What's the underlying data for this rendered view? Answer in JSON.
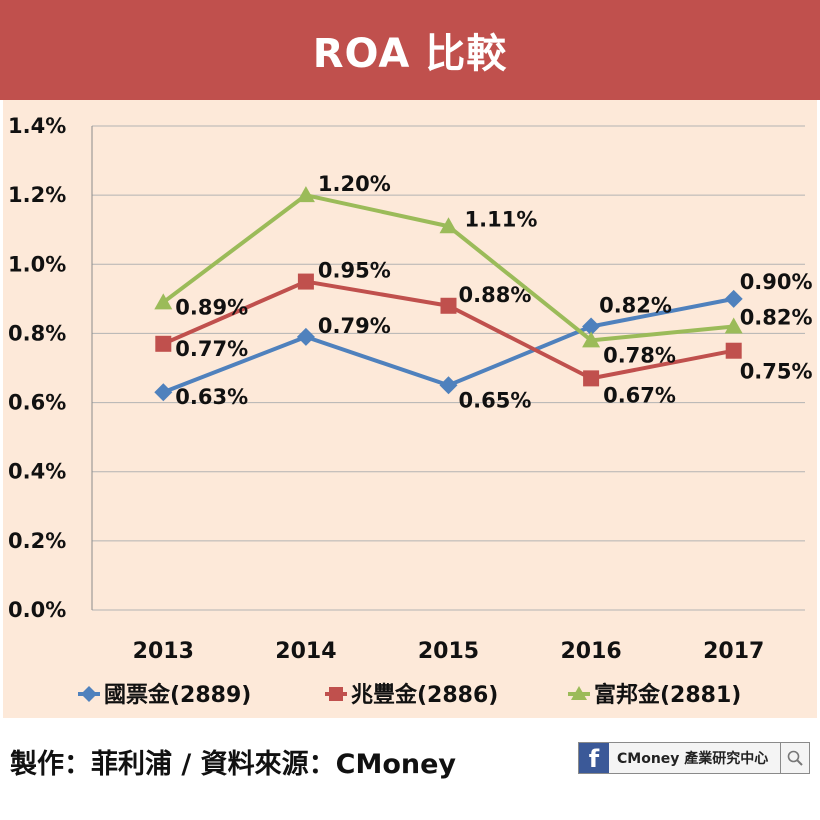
{
  "header": {
    "title": "ROA 比較"
  },
  "chart_data": {
    "type": "line",
    "title": "",
    "xlabel": "",
    "ylabel": "",
    "categories": [
      "2013",
      "2014",
      "2015",
      "2016",
      "2017"
    ],
    "ylim": [
      0.0,
      1.4
    ],
    "yticks": [
      "0.0%",
      "0.2%",
      "0.4%",
      "0.6%",
      "0.8%",
      "1.0%",
      "1.2%",
      "1.4%"
    ],
    "grid": true,
    "legend_position": "bottom",
    "series": [
      {
        "name": "國票金(2889)",
        "color": "#4f81bd",
        "marker": "diamond",
        "values": [
          0.63,
          0.79,
          0.65,
          0.82,
          0.9
        ],
        "labels": [
          "0.63%",
          "0.79%",
          "0.65%",
          "0.82%",
          "0.90%"
        ]
      },
      {
        "name": "兆豐金(2886)",
        "color": "#c0504d",
        "marker": "square",
        "values": [
          0.77,
          0.95,
          0.88,
          0.67,
          0.75
        ],
        "labels": [
          "0.77%",
          "0.95%",
          "0.88%",
          "0.67%",
          "0.75%"
        ]
      },
      {
        "name": "富邦金(2881)",
        "color": "#9bbb59",
        "marker": "triangle",
        "values": [
          0.89,
          1.2,
          1.11,
          0.78,
          0.82
        ],
        "labels": [
          "0.89%",
          "1.20%",
          "1.11%",
          "0.78%",
          "0.82%"
        ]
      }
    ],
    "plot_background": "#fde9d9"
  },
  "footer": {
    "credit": "製作：菲利浦 / 資料來源：CMoney",
    "badge_letter": "f",
    "badge_text": "CMoney 產業研究中心",
    "badge_icon": "search-icon"
  }
}
